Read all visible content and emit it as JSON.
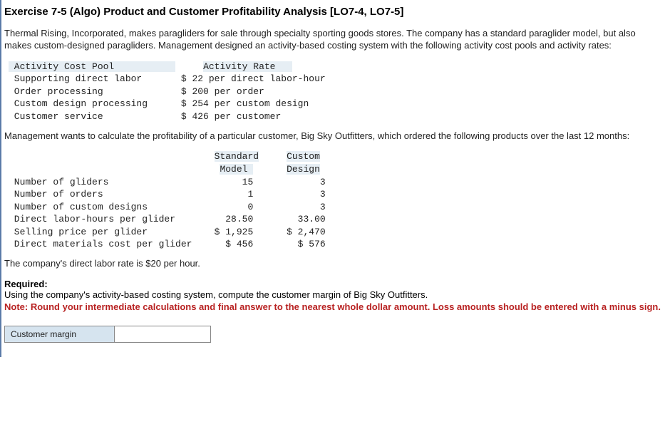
{
  "title": "Exercise 7-5 (Algo) Product and Customer Profitability Analysis [LO7-4, LO7-5]",
  "intro": "Thermal Rising, Incorporated, makes paragliders for sale through specialty sporting goods stores. The company has a standard paraglider model, but also makes custom-designed paragliders. Management designed an activity-based costing system with the following activity cost pools and activity rates:",
  "costPoolTable": {
    "headers": {
      "left": "Activity Cost Pool",
      "right": "Activity Rate"
    },
    "rows": [
      {
        "pool": "Supporting direct labor",
        "rate": "$ 22 per direct labor-hour"
      },
      {
        "pool": "Order processing",
        "rate": "$ 200 per order"
      },
      {
        "pool": "Custom design processing",
        "rate": "$ 254 per custom design"
      },
      {
        "pool": "Customer service",
        "rate": "$ 426 per customer"
      }
    ]
  },
  "midText": "Management wants to calculate the profitability of a particular customer, Big Sky Outfitters, which ordered the following products over the last 12 months:",
  "productTable": {
    "headers": {
      "col1": "Standard",
      "col1b": "Model",
      "col2": "Custom",
      "col2b": "Design"
    },
    "rows": [
      {
        "label": "Number of gliders",
        "std": "15",
        "cust": "3"
      },
      {
        "label": "Number of orders",
        "std": "1",
        "cust": "3"
      },
      {
        "label": "Number of custom designs",
        "std": "0",
        "cust": "3"
      },
      {
        "label": "Direct labor-hours per glider",
        "std": "28.50",
        "cust": "33.00"
      },
      {
        "label": "Selling price per glider",
        "std": "$ 1,925",
        "cust": "$ 2,470"
      },
      {
        "label": "Direct materials cost per glider",
        "std": "$ 456",
        "cust": "$ 576"
      }
    ]
  },
  "laborRateText": "The company's direct labor rate is $20 per hour.",
  "requiredLabel": "Required:",
  "requiredText": "Using the company's activity-based costing system, compute the customer margin of Big Sky Outfitters.",
  "note": "Note: Round your intermediate calculations and final answer to the nearest whole dollar amount. Loss amounts should be entered with a minus sign.",
  "answer": {
    "label": "Customer margin",
    "value": ""
  },
  "colors": {
    "borderLeft": "#5b7ba8",
    "highlight": "#e6eef4",
    "answerBg": "#d6e4ef",
    "noteColor": "#b82222"
  }
}
